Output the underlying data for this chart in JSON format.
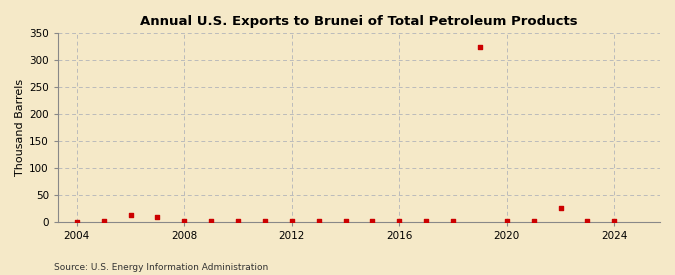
{
  "title": "Annual U.S. Exports to Brunei of Total Petroleum Products",
  "ylabel": "Thousand Barrels",
  "source": "Source: U.S. Energy Information Administration",
  "background_color": "#f5e9c8",
  "plot_background_color": "#f5e9c8",
  "marker_color": "#cc0000",
  "grid_color": "#bbbbbb",
  "xlim": [
    2003.3,
    2025.7
  ],
  "ylim": [
    0,
    350
  ],
  "yticks": [
    0,
    50,
    100,
    150,
    200,
    250,
    300,
    350
  ],
  "xticks": [
    2004,
    2008,
    2012,
    2016,
    2020,
    2024
  ],
  "data": {
    "2004": 0,
    "2005": 1,
    "2006": 12,
    "2007": 8,
    "2008": 2,
    "2009": 1,
    "2010": 1,
    "2011": 1,
    "2012": 1,
    "2013": 1,
    "2014": 1,
    "2015": 2,
    "2016": 1,
    "2017": 1,
    "2018": 1,
    "2019": 325,
    "2020": 1,
    "2021": 1,
    "2022": 25,
    "2023": 1,
    "2024": 1
  }
}
